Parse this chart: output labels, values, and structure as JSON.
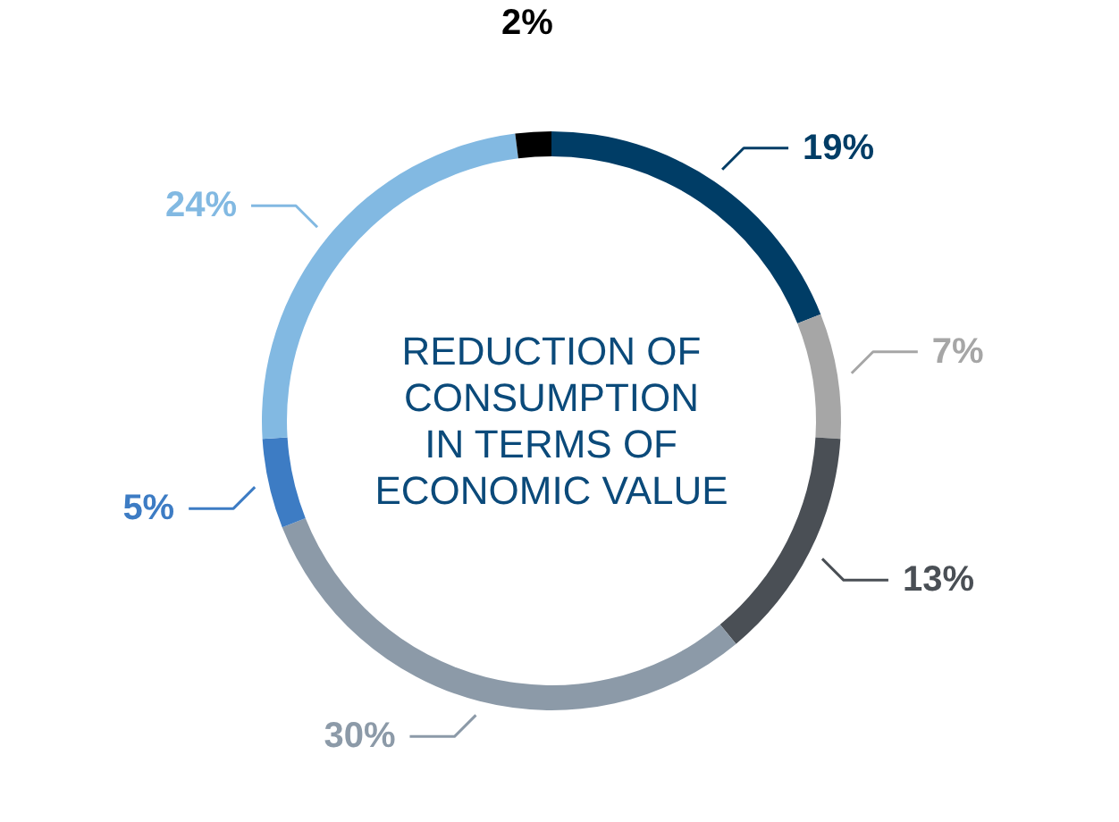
{
  "chart_data": {
    "type": "donut",
    "title": "REDUCTION OF\nCONSUMPTION\nIN TERMS OF\nECONOMIC VALUE",
    "categories": [
      null,
      null,
      null,
      null,
      null,
      null,
      null
    ],
    "values": [
      19,
      7,
      13,
      30,
      5,
      24,
      2
    ],
    "colors": [
      "#003d66",
      "#a6a6a6",
      "#4a4f55",
      "#8c9aa8",
      "#3d7cc4",
      "#82b9e2",
      "#000000"
    ],
    "value_labels": [
      "19%",
      "7%",
      "13%",
      "30%",
      "5%",
      "24%",
      "2%"
    ]
  }
}
